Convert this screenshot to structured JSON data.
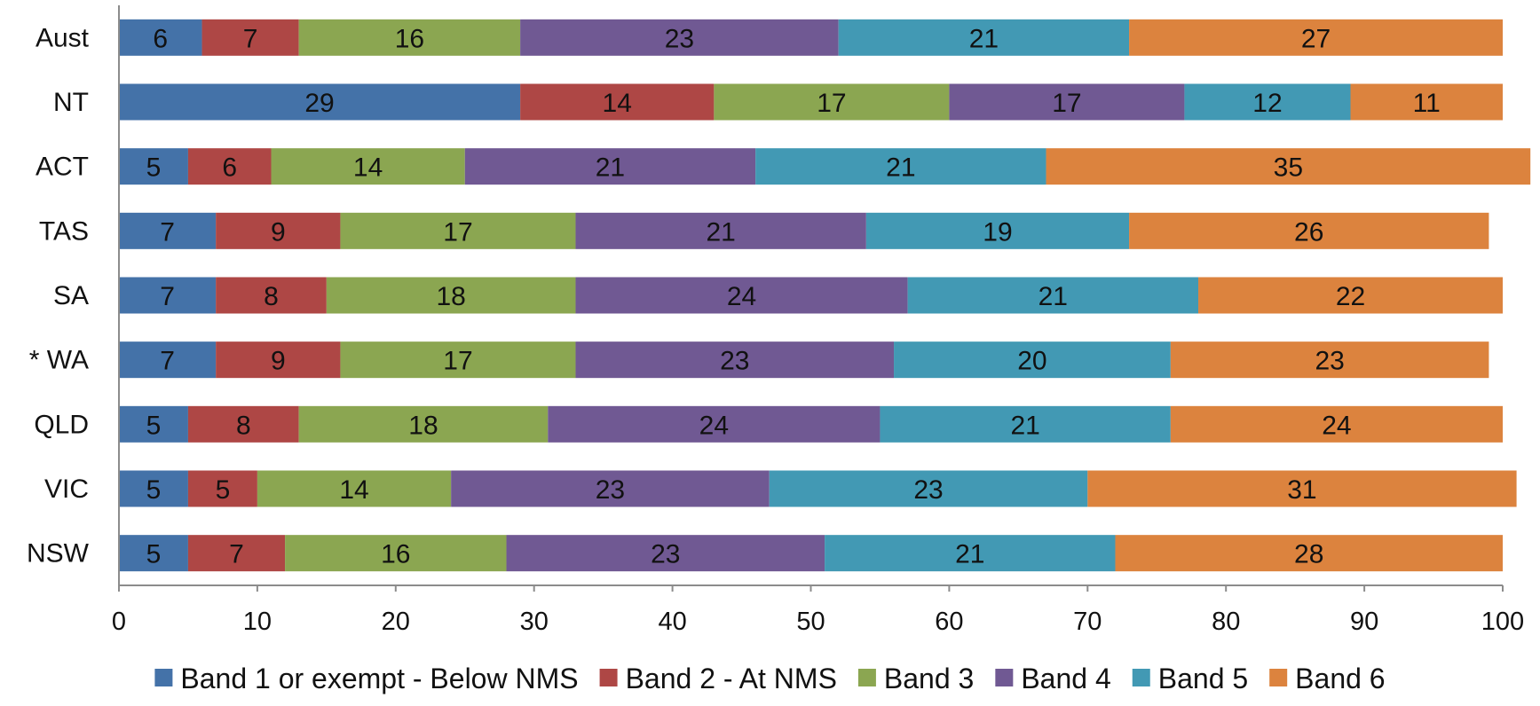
{
  "chart_data": {
    "type": "bar",
    "orientation": "horizontal",
    "stacked": true,
    "categories": [
      "Aust",
      "NT",
      "ACT",
      "TAS",
      "SA",
      "* WA",
      "QLD",
      "VIC",
      "NSW"
    ],
    "series": [
      {
        "name": "Band 1 or exempt - Below NMS",
        "color": "#4472a8",
        "values": [
          6,
          29,
          5,
          7,
          7,
          7,
          5,
          5,
          5
        ]
      },
      {
        "name": "Band 2 - At NMS",
        "color": "#ae4745",
        "values": [
          7,
          14,
          6,
          9,
          8,
          9,
          8,
          5,
          7
        ]
      },
      {
        "name": "Band 3",
        "color": "#8ba651",
        "values": [
          16,
          17,
          14,
          17,
          18,
          17,
          18,
          14,
          16
        ]
      },
      {
        "name": "Band 4",
        "color": "#705993",
        "values": [
          23,
          17,
          21,
          21,
          24,
          23,
          24,
          23,
          23
        ]
      },
      {
        "name": "Band 5",
        "color": "#4299b4",
        "values": [
          21,
          12,
          21,
          19,
          21,
          20,
          21,
          23,
          21
        ]
      },
      {
        "name": "Band 6",
        "color": "#dc833e",
        "values": [
          27,
          11,
          35,
          26,
          22,
          23,
          24,
          31,
          28
        ]
      }
    ],
    "xlim": [
      0,
      100
    ],
    "xticks": [
      0,
      10,
      20,
      30,
      40,
      50,
      60,
      70,
      80,
      90,
      100
    ],
    "grid": false,
    "legend_position": "bottom"
  }
}
